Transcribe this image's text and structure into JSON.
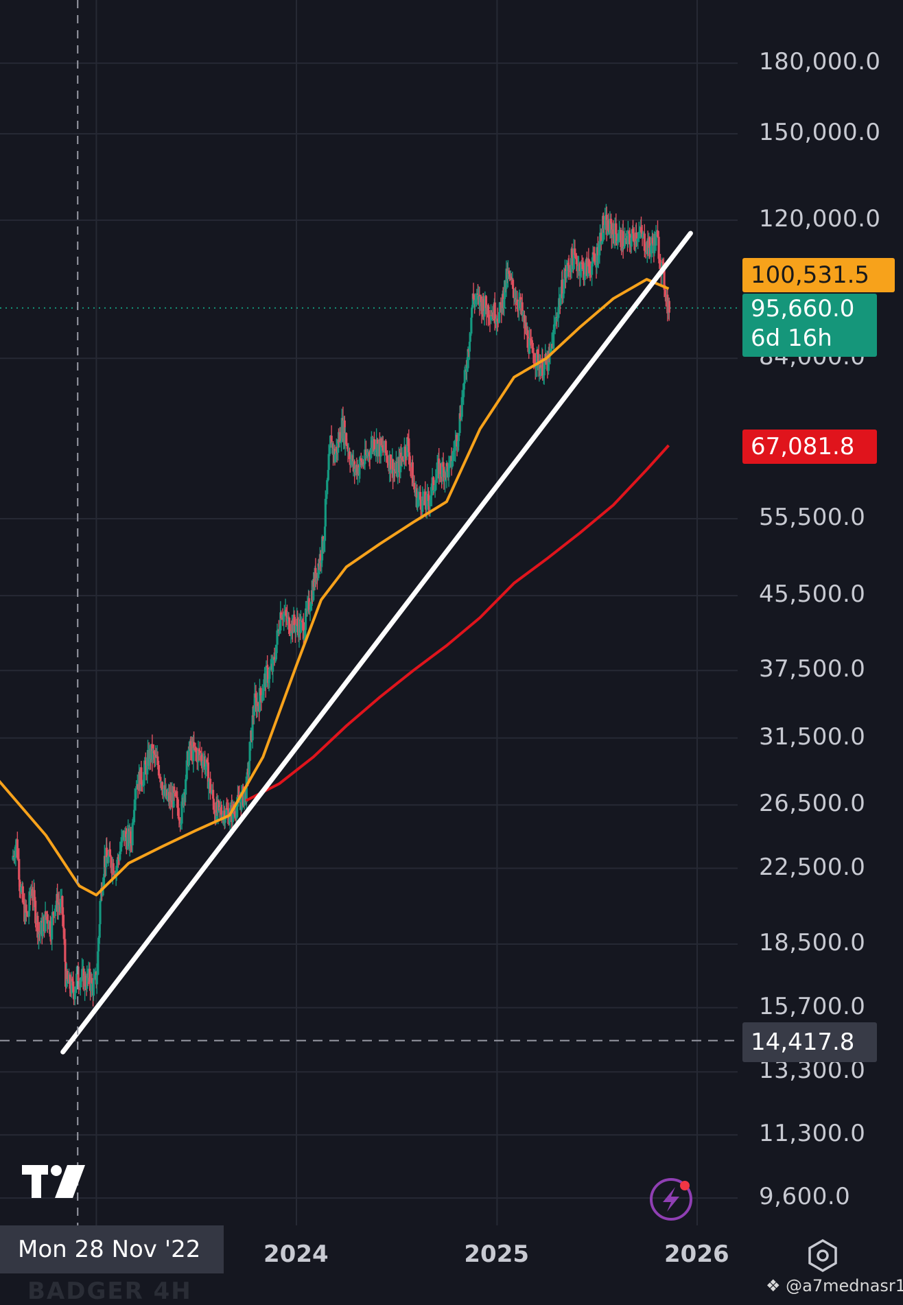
{
  "chart_data": {
    "type": "candlestick",
    "scale": "log",
    "title": "",
    "xlabel": "",
    "ylabel": "",
    "ylim": [
      8500,
      240000
    ],
    "y_tick_labels": [
      "180,000.0",
      "150,000.0",
      "120,000.0",
      "84,000.0",
      "55,500.0",
      "45,500.0",
      "37,500.0",
      "31,500.0",
      "26,500.0",
      "22,500.0",
      "18,500.0",
      "15,700.0",
      "13,300.0",
      "11,300.0",
      "9,600.0"
    ],
    "x_tick_labels": [
      "2024",
      "2025",
      "2026"
    ],
    "grid": true,
    "series": [
      {
        "name": "",
        "kind": "price",
        "x": [
          "2022-08-01",
          "2022-08-08",
          "2022-08-15",
          "2022-08-22",
          "2022-08-29",
          "2022-09-05",
          "2022-09-12",
          "2022-09-19",
          "2022-09-26",
          "2022-10-03",
          "2022-10-10",
          "2022-10-17",
          "2022-10-24",
          "2022-10-31",
          "2022-11-07",
          "2022-11-14",
          "2022-11-21",
          "2022-11-28",
          "2022-12-05",
          "2022-12-12",
          "2022-12-19",
          "2022-12-26",
          "2023-01-02",
          "2023-01-09",
          "2023-01-16",
          "2023-01-23",
          "2023-02-06",
          "2023-02-20",
          "2023-03-06",
          "2023-03-13",
          "2023-03-27",
          "2023-04-10",
          "2023-04-24",
          "2023-05-08",
          "2023-05-22",
          "2023-06-05",
          "2023-06-19",
          "2023-07-03",
          "2023-07-17",
          "2023-08-07",
          "2023-08-21",
          "2023-09-04",
          "2023-09-18",
          "2023-10-02",
          "2023-10-16",
          "2023-10-23",
          "2023-11-06",
          "2023-11-20",
          "2023-12-04",
          "2023-12-18",
          "2024-01-01",
          "2024-01-15",
          "2024-02-05",
          "2024-02-19",
          "2024-03-04",
          "2024-03-11",
          "2024-03-25",
          "2024-04-15",
          "2024-05-06",
          "2024-05-20",
          "2024-06-10",
          "2024-07-01",
          "2024-07-22",
          "2024-08-05",
          "2024-08-26",
          "2024-09-16",
          "2024-10-07",
          "2024-10-21",
          "2024-11-04",
          "2024-11-11",
          "2024-11-18",
          "2024-12-02",
          "2024-12-16",
          "2025-01-06",
          "2025-01-20",
          "2025-02-10",
          "2025-03-03",
          "2025-03-24",
          "2025-04-07",
          "2025-04-21",
          "2025-05-05",
          "2025-05-19",
          "2025-06-09",
          "2025-06-30",
          "2025-07-14",
          "2025-08-04",
          "2025-08-25",
          "2025-09-15",
          "2025-10-06",
          "2025-10-20",
          "2025-11-03",
          "2025-11-10"
        ],
        "values": [
          23000,
          24200,
          21800,
          20200,
          19800,
          21500,
          20100,
          19000,
          19400,
          20000,
          19200,
          20500,
          20600,
          20300,
          16800,
          16600,
          16400,
          17100,
          17000,
          16800,
          16900,
          16550,
          17000,
          20900,
          23000,
          23100,
          22500,
          24500,
          24100,
          28000,
          28500,
          30300,
          29400,
          26900,
          27000,
          25800,
          30500,
          30300,
          29800,
          26000,
          26100,
          25900,
          26600,
          27500,
          34500,
          34400,
          36800,
          37800,
          44000,
          42300,
          42200,
          41800,
          48000,
          52000,
          68300,
          65000,
          70700,
          63000,
          64500,
          67800,
          66000,
          62500,
          67600,
          59000,
          57500,
          63000,
          63000,
          69000,
          80000,
          88000,
          98000,
          97000,
          95500,
          94000,
          104000,
          97000,
          86000,
          82000,
          83500,
          95000,
          104000,
          109000,
          105500,
          108000,
          119000,
          116000,
          113000,
          116500,
          111500,
          114500,
          101500,
          95660
        ]
      },
      {
        "name": "",
        "kind": "moving-average",
        "color": "#f7a21b",
        "x": [
          "2022-01-01",
          "2022-04-01",
          "2022-07-01",
          "2022-10-01",
          "2022-12-01",
          "2023-01-01",
          "2023-03-01",
          "2023-05-01",
          "2023-07-01",
          "2023-09-01",
          "2023-11-01",
          "2024-01-01",
          "2024-02-15",
          "2024-04-01",
          "2024-06-01",
          "2024-08-01",
          "2024-10-01",
          "2024-12-01",
          "2025-02-01",
          "2025-04-01",
          "2025-06-01",
          "2025-08-01",
          "2025-10-01",
          "2025-11-10"
        ],
        "values": [
          40000,
          33000,
          28500,
          24500,
          21500,
          21000,
          22800,
          23800,
          24800,
          25800,
          30000,
          38000,
          45000,
          49000,
          52000,
          55000,
          58000,
          70000,
          80000,
          84000,
          91000,
          98000,
          103000,
          100531.5
        ]
      },
      {
        "name": "",
        "kind": "moving-average",
        "color": "#e0141c",
        "x": [
          "2023-10-01",
          "2023-12-01",
          "2024-02-01",
          "2024-04-01",
          "2024-06-01",
          "2024-08-01",
          "2024-10-01",
          "2024-12-01",
          "2025-02-01",
          "2025-04-01",
          "2025-06-01",
          "2025-08-01",
          "2025-10-01",
          "2025-11-10"
        ],
        "values": [
          26800,
          28000,
          30000,
          32500,
          35000,
          37500,
          40000,
          43000,
          47000,
          50000,
          53500,
          57500,
          63000,
          67081.8
        ]
      }
    ],
    "trendline": {
      "color": "#ffffff",
      "from": {
        "x": "2022-11-01",
        "y": 14000
      },
      "to": {
        "x": "2025-12-20",
        "y": 116000
      }
    },
    "horizontal_line": {
      "y": 14417.8,
      "style": "dashed"
    },
    "crosshair": {
      "x": "2022-11-28",
      "label": "Mon 28 Nov '22"
    },
    "current_price": {
      "value": 95660.0,
      "label": "95,660.0",
      "countdown": "6d 16h",
      "color": "#15967a"
    },
    "ma_labels": [
      {
        "value": 100531.5,
        "label": "100,531.5",
        "color": "#f7a21b"
      },
      {
        "value": 67081.8,
        "label": "67,081.8",
        "color": "#e0141c"
      }
    ],
    "hline_label": "14,417.8",
    "candle_colors": {
      "up": "#159980",
      "down": "#e0505f"
    }
  },
  "ui": {
    "crosshair_date_label": "Mon 28 Nov '22",
    "watermark": "@a7mednasr1",
    "ghost_text": "BADGER     4H",
    "settings_icon": "gear-hexagon-icon",
    "logo_icon": "tradingview-logo-icon",
    "flash_icon": "lightning-icon"
  }
}
